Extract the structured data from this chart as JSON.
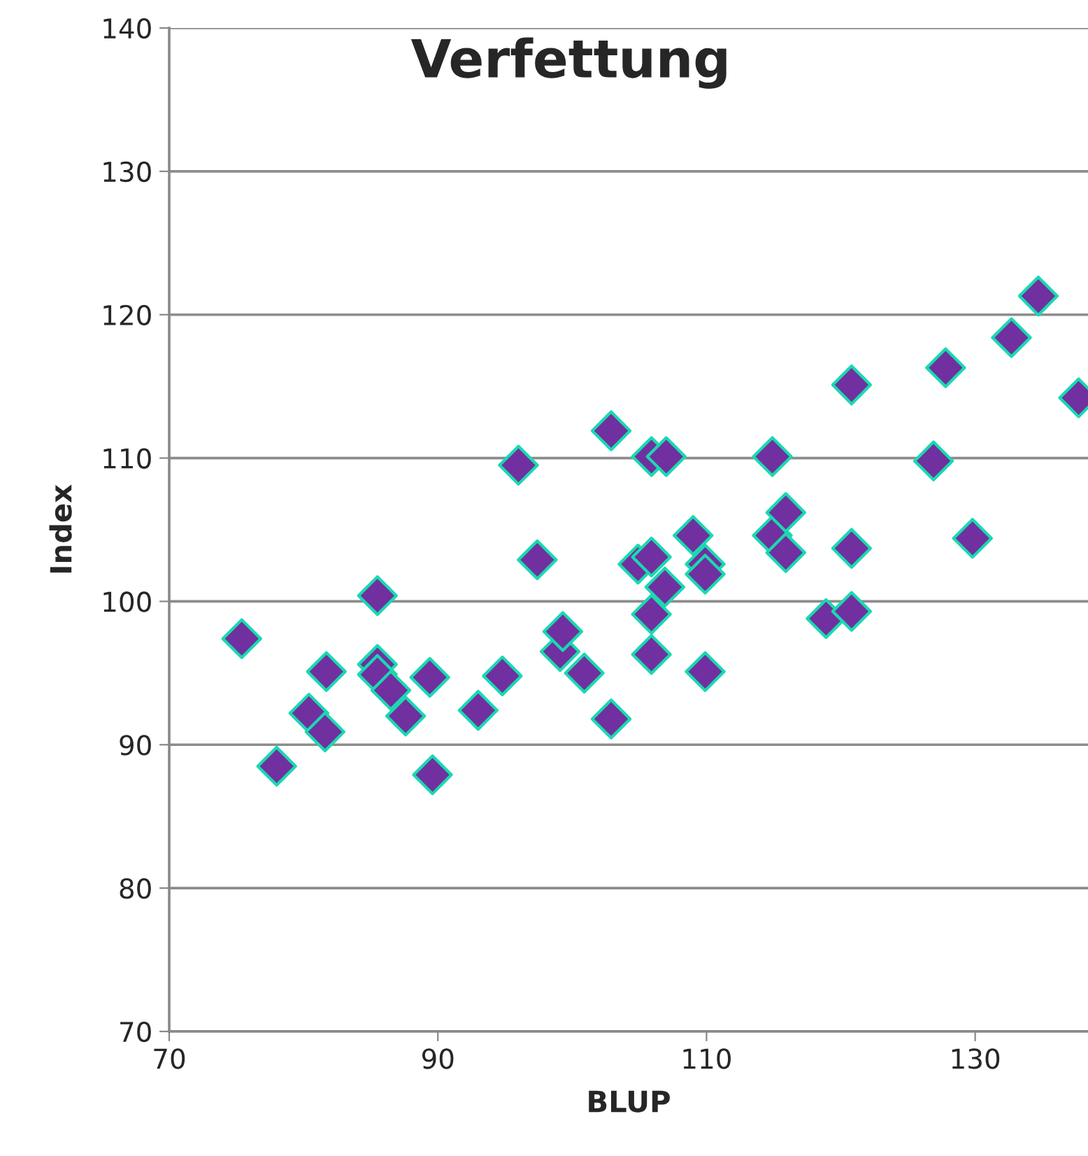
{
  "chart_data": {
    "type": "scatter",
    "title": "Verfettung",
    "xlabel": "BLUP",
    "ylabel": "Index",
    "xlim": [
      70,
      138.4
    ],
    "ylim": [
      70,
      140
    ],
    "xticks": [
      70,
      90,
      110,
      130
    ],
    "yticks": [
      70,
      80,
      90,
      100,
      110,
      120,
      130,
      140
    ],
    "grid": "y",
    "marker": "diamond",
    "legend": false,
    "series": [
      {
        "color": "#7030a0",
        "x": [
          75.4,
          78.0,
          80.4,
          81.7,
          81.6,
          85.5,
          85.5,
          85.5,
          86.5,
          87.6,
          89.4,
          89.6,
          93.0,
          94.8,
          96.0,
          97.4,
          99.1,
          99.3,
          100.9,
          102.9,
          102.9,
          104.9,
          105.9,
          105.9,
          107.0,
          106.9,
          105.9,
          105.9,
          109.0,
          109.9,
          109.9,
          109.9,
          114.9,
          114.9,
          115.9,
          115.9,
          118.9,
          120.8,
          120.8,
          120.8,
          126.9,
          127.8,
          129.8,
          132.7,
          134.7,
          137.7
        ],
        "values": [
          97.4,
          88.5,
          92.2,
          95.1,
          90.9,
          100.4,
          95.6,
          94.9,
          93.8,
          92.0,
          94.7,
          87.9,
          92.4,
          94.8,
          109.5,
          102.9,
          96.5,
          97.9,
          95.0,
          91.8,
          111.9,
          102.6,
          103.1,
          110.1,
          110.1,
          101.0,
          99.1,
          96.3,
          104.6,
          102.6,
          101.9,
          95.1,
          110.1,
          104.6,
          106.2,
          103.4,
          98.8,
          99.3,
          103.7,
          115.1,
          109.8,
          116.3,
          104.4,
          118.4,
          121.3,
          114.2
        ]
      }
    ]
  }
}
